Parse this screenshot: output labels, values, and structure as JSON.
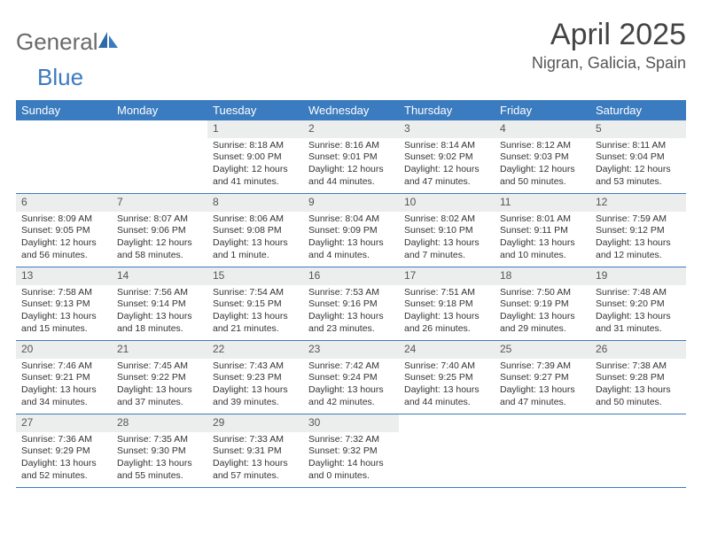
{
  "logo": {
    "general": "General",
    "blue": "Blue"
  },
  "title": "April 2025",
  "subtitle": "Nigran, Galicia, Spain",
  "colors": {
    "header_bg": "#3b7bbf",
    "header_text": "#ffffff",
    "daynum_bg": "#eceded",
    "text": "#333333",
    "border": "#3b7bbf"
  },
  "day_names": [
    "Sunday",
    "Monday",
    "Tuesday",
    "Wednesday",
    "Thursday",
    "Friday",
    "Saturday"
  ],
  "weeks": [
    [
      {
        "empty": true
      },
      {
        "empty": true
      },
      {
        "n": "1",
        "sr": "Sunrise: 8:18 AM",
        "ss": "Sunset: 9:00 PM",
        "dl": "Daylight: 12 hours and 41 minutes."
      },
      {
        "n": "2",
        "sr": "Sunrise: 8:16 AM",
        "ss": "Sunset: 9:01 PM",
        "dl": "Daylight: 12 hours and 44 minutes."
      },
      {
        "n": "3",
        "sr": "Sunrise: 8:14 AM",
        "ss": "Sunset: 9:02 PM",
        "dl": "Daylight: 12 hours and 47 minutes."
      },
      {
        "n": "4",
        "sr": "Sunrise: 8:12 AM",
        "ss": "Sunset: 9:03 PM",
        "dl": "Daylight: 12 hours and 50 minutes."
      },
      {
        "n": "5",
        "sr": "Sunrise: 8:11 AM",
        "ss": "Sunset: 9:04 PM",
        "dl": "Daylight: 12 hours and 53 minutes."
      }
    ],
    [
      {
        "n": "6",
        "sr": "Sunrise: 8:09 AM",
        "ss": "Sunset: 9:05 PM",
        "dl": "Daylight: 12 hours and 56 minutes."
      },
      {
        "n": "7",
        "sr": "Sunrise: 8:07 AM",
        "ss": "Sunset: 9:06 PM",
        "dl": "Daylight: 12 hours and 58 minutes."
      },
      {
        "n": "8",
        "sr": "Sunrise: 8:06 AM",
        "ss": "Sunset: 9:08 PM",
        "dl": "Daylight: 13 hours and 1 minute."
      },
      {
        "n": "9",
        "sr": "Sunrise: 8:04 AM",
        "ss": "Sunset: 9:09 PM",
        "dl": "Daylight: 13 hours and 4 minutes."
      },
      {
        "n": "10",
        "sr": "Sunrise: 8:02 AM",
        "ss": "Sunset: 9:10 PM",
        "dl": "Daylight: 13 hours and 7 minutes."
      },
      {
        "n": "11",
        "sr": "Sunrise: 8:01 AM",
        "ss": "Sunset: 9:11 PM",
        "dl": "Daylight: 13 hours and 10 minutes."
      },
      {
        "n": "12",
        "sr": "Sunrise: 7:59 AM",
        "ss": "Sunset: 9:12 PM",
        "dl": "Daylight: 13 hours and 12 minutes."
      }
    ],
    [
      {
        "n": "13",
        "sr": "Sunrise: 7:58 AM",
        "ss": "Sunset: 9:13 PM",
        "dl": "Daylight: 13 hours and 15 minutes."
      },
      {
        "n": "14",
        "sr": "Sunrise: 7:56 AM",
        "ss": "Sunset: 9:14 PM",
        "dl": "Daylight: 13 hours and 18 minutes."
      },
      {
        "n": "15",
        "sr": "Sunrise: 7:54 AM",
        "ss": "Sunset: 9:15 PM",
        "dl": "Daylight: 13 hours and 21 minutes."
      },
      {
        "n": "16",
        "sr": "Sunrise: 7:53 AM",
        "ss": "Sunset: 9:16 PM",
        "dl": "Daylight: 13 hours and 23 minutes."
      },
      {
        "n": "17",
        "sr": "Sunrise: 7:51 AM",
        "ss": "Sunset: 9:18 PM",
        "dl": "Daylight: 13 hours and 26 minutes."
      },
      {
        "n": "18",
        "sr": "Sunrise: 7:50 AM",
        "ss": "Sunset: 9:19 PM",
        "dl": "Daylight: 13 hours and 29 minutes."
      },
      {
        "n": "19",
        "sr": "Sunrise: 7:48 AM",
        "ss": "Sunset: 9:20 PM",
        "dl": "Daylight: 13 hours and 31 minutes."
      }
    ],
    [
      {
        "n": "20",
        "sr": "Sunrise: 7:46 AM",
        "ss": "Sunset: 9:21 PM",
        "dl": "Daylight: 13 hours and 34 minutes."
      },
      {
        "n": "21",
        "sr": "Sunrise: 7:45 AM",
        "ss": "Sunset: 9:22 PM",
        "dl": "Daylight: 13 hours and 37 minutes."
      },
      {
        "n": "22",
        "sr": "Sunrise: 7:43 AM",
        "ss": "Sunset: 9:23 PM",
        "dl": "Daylight: 13 hours and 39 minutes."
      },
      {
        "n": "23",
        "sr": "Sunrise: 7:42 AM",
        "ss": "Sunset: 9:24 PM",
        "dl": "Daylight: 13 hours and 42 minutes."
      },
      {
        "n": "24",
        "sr": "Sunrise: 7:40 AM",
        "ss": "Sunset: 9:25 PM",
        "dl": "Daylight: 13 hours and 44 minutes."
      },
      {
        "n": "25",
        "sr": "Sunrise: 7:39 AM",
        "ss": "Sunset: 9:27 PM",
        "dl": "Daylight: 13 hours and 47 minutes."
      },
      {
        "n": "26",
        "sr": "Sunrise: 7:38 AM",
        "ss": "Sunset: 9:28 PM",
        "dl": "Daylight: 13 hours and 50 minutes."
      }
    ],
    [
      {
        "n": "27",
        "sr": "Sunrise: 7:36 AM",
        "ss": "Sunset: 9:29 PM",
        "dl": "Daylight: 13 hours and 52 minutes."
      },
      {
        "n": "28",
        "sr": "Sunrise: 7:35 AM",
        "ss": "Sunset: 9:30 PM",
        "dl": "Daylight: 13 hours and 55 minutes."
      },
      {
        "n": "29",
        "sr": "Sunrise: 7:33 AM",
        "ss": "Sunset: 9:31 PM",
        "dl": "Daylight: 13 hours and 57 minutes."
      },
      {
        "n": "30",
        "sr": "Sunrise: 7:32 AM",
        "ss": "Sunset: 9:32 PM",
        "dl": "Daylight: 14 hours and 0 minutes."
      },
      {
        "empty": true
      },
      {
        "empty": true
      },
      {
        "empty": true
      }
    ]
  ]
}
